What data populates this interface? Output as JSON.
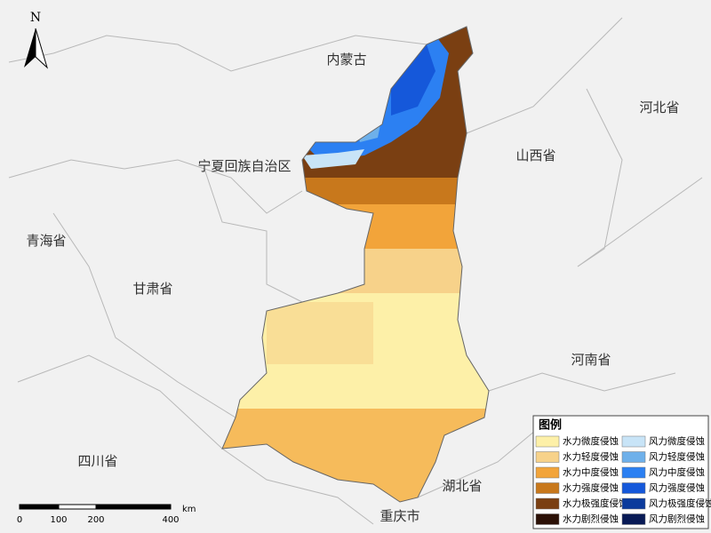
{
  "north": "N",
  "places": [
    "内蒙古",
    "宁夏回族自治区",
    "山西省",
    "河北省",
    "青海省",
    "甘肃省",
    "河南省",
    "四川省",
    "湖北省",
    "重庆市"
  ],
  "legend": {
    "title": "图例",
    "water": [
      {
        "label": "水力微度侵蚀",
        "color": "#fdf0a8"
      },
      {
        "label": "水力轻度侵蚀",
        "color": "#f7d28a"
      },
      {
        "label": "水力中度侵蚀",
        "color": "#f2a43a"
      },
      {
        "label": "水力强度侵蚀",
        "color": "#c8781c"
      },
      {
        "label": "水力极强度侵蚀",
        "color": "#7a3f12"
      },
      {
        "label": "水力剧烈侵蚀",
        "color": "#2b1006"
      }
    ],
    "wind": [
      {
        "label": "风力微度侵蚀",
        "color": "#c8e4f7"
      },
      {
        "label": "风力轻度侵蚀",
        "color": "#6eb0ea"
      },
      {
        "label": "风力中度侵蚀",
        "color": "#2c80f2"
      },
      {
        "label": "风力强度侵蚀",
        "color": "#1558da"
      },
      {
        "label": "风力极强度侵蚀",
        "color": "#0b3b9c"
      },
      {
        "label": "风力剧烈侵蚀",
        "color": "#081a56"
      }
    ]
  },
  "scale_bar": {
    "ticks": [
      "0",
      "100",
      "200",
      "400"
    ],
    "unit": "km"
  }
}
